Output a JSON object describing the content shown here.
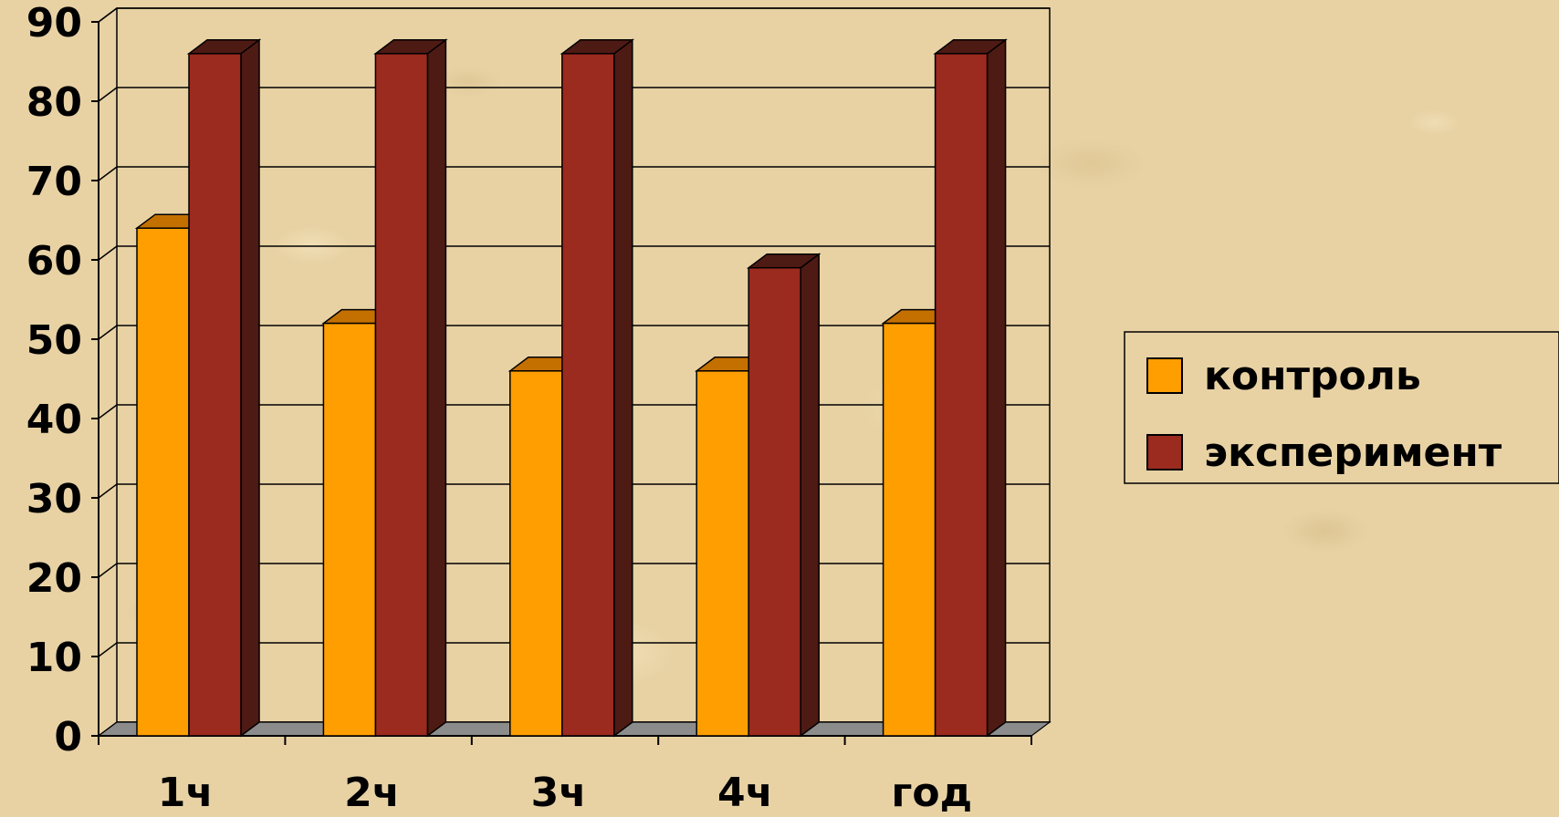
{
  "chart_data": {
    "type": "bar",
    "style": "3d-clustered-column",
    "categories": [
      "1ч",
      "2ч",
      "3ч",
      "4ч",
      "год"
    ],
    "series": [
      {
        "name": "контроль",
        "color": "#ff9e00",
        "side_color": "#c47000",
        "values": [
          64,
          52,
          46,
          46,
          52
        ]
      },
      {
        "name": "эксперимент",
        "color": "#9b2a1f",
        "side_color": "#4e1a14",
        "values": [
          86,
          86,
          86,
          59,
          86
        ]
      }
    ],
    "ylim": [
      0,
      90
    ],
    "yticks": [
      0,
      10,
      20,
      30,
      40,
      50,
      60,
      70,
      80,
      90
    ],
    "grid": true,
    "legend_position": "right"
  }
}
